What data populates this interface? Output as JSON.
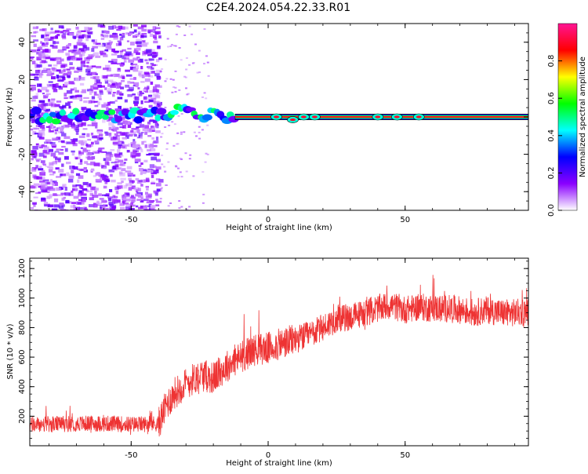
{
  "title": "C2E4.2024.054.22.33.R01",
  "chart_data": [
    {
      "type": "heatmap",
      "xlabel": "Height of straight line (km)",
      "ylabel": "Frequency (Hz)",
      "xlim": [
        -87,
        95
      ],
      "ylim": [
        -50,
        50
      ],
      "xticks": [
        -50,
        0,
        50
      ],
      "xtick_labels": [
        "-50",
        "0",
        "50"
      ],
      "yticks": [
        -40,
        -20,
        0,
        20,
        40
      ],
      "ytick_labels": [
        "-40",
        "-20",
        "0",
        "20",
        "40"
      ],
      "colorbar": {
        "label": "Normalized spectral amplitude",
        "range": [
          0.0,
          1.0
        ],
        "ticks": [
          0.0,
          0.2,
          0.4,
          0.6,
          0.8
        ],
        "tick_labels": [
          "0.0",
          "0.2",
          "0.4",
          "0.6",
          "0.8"
        ],
        "colormap": [
          "#ffffff",
          "#8a00ff",
          "#0000ff",
          "#00ffff",
          "#00ff00",
          "#ffff00",
          "#ff0000",
          "#ff1493"
        ]
      },
      "description_of_signal": {
        "noise_region_x": [
          -87,
          -40
        ],
        "transition_region_x": [
          -40,
          -12
        ],
        "carrier_line_x": [
          -12,
          95
        ],
        "carrier_frequency": 0,
        "carrier_amplitude": 0.9
      },
      "grid": false
    },
    {
      "type": "line",
      "xlabel": "Height of straight line (km)",
      "ylabel": "SNR (10 * v/v)",
      "xlim": [
        -87,
        95
      ],
      "ylim": [
        0,
        1270
      ],
      "xticks": [
        -50,
        0,
        50
      ],
      "xtick_labels": [
        "-50",
        "0",
        "50"
      ],
      "yticks": [
        200,
        400,
        600,
        800,
        1000,
        1200
      ],
      "ytick_labels": [
        "200",
        "400",
        "600",
        "800",
        "1000",
        "1200"
      ],
      "color": "#ee3333",
      "series": [
        {
          "x": [
            -87,
            -80,
            -70,
            -60,
            -50,
            -40,
            -37,
            -34,
            -30,
            -25,
            -20,
            -15,
            -10,
            -5,
            0,
            5,
            10,
            15,
            20,
            25,
            30,
            35,
            40,
            45,
            50,
            55,
            60,
            65,
            70,
            75,
            80,
            85,
            90,
            95
          ],
          "values": [
            140,
            145,
            150,
            150,
            145,
            150,
            280,
            360,
            420,
            480,
            460,
            540,
            600,
            650,
            660,
            690,
            720,
            750,
            800,
            860,
            870,
            900,
            930,
            950,
            920,
            940,
            930,
            930,
            920,
            900,
            920,
            900,
            900,
            910
          ]
        }
      ],
      "grid": false
    }
  ]
}
